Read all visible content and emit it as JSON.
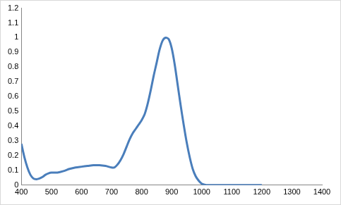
{
  "chart_data": {
    "type": "line",
    "color": "#4a7ebb",
    "grid": false,
    "x": [
      400,
      410,
      420,
      430,
      440,
      450,
      460,
      470,
      480,
      490,
      500,
      520,
      540,
      560,
      580,
      600,
      620,
      640,
      660,
      680,
      700,
      710,
      720,
      730,
      740,
      750,
      760,
      770,
      780,
      790,
      800,
      810,
      820,
      830,
      840,
      850,
      860,
      870,
      880,
      890,
      900,
      910,
      920,
      930,
      940,
      950,
      960,
      970,
      980,
      990,
      1000,
      1010,
      1020,
      1050,
      1100,
      1150,
      1200
    ],
    "values": [
      0.28,
      0.19,
      0.12,
      0.07,
      0.045,
      0.04,
      0.045,
      0.055,
      0.07,
      0.08,
      0.085,
      0.085,
      0.095,
      0.11,
      0.12,
      0.125,
      0.13,
      0.135,
      0.135,
      0.13,
      0.12,
      0.12,
      0.14,
      0.17,
      0.21,
      0.26,
      0.31,
      0.35,
      0.38,
      0.41,
      0.44,
      0.48,
      0.55,
      0.64,
      0.74,
      0.83,
      0.92,
      0.98,
      1.0,
      0.99,
      0.93,
      0.82,
      0.68,
      0.54,
      0.41,
      0.29,
      0.19,
      0.11,
      0.06,
      0.03,
      0.01,
      0.003,
      0,
      0,
      0,
      0,
      0
    ],
    "xlim": [
      400,
      1400
    ],
    "xticks": [
      400,
      500,
      600,
      700,
      800,
      900,
      1000,
      1100,
      1200,
      1300,
      1400
    ],
    "ylim": [
      0,
      1.2
    ],
    "yticks": [
      0,
      0.1,
      0.2,
      0.3,
      0.4,
      0.5,
      0.6,
      0.7,
      0.8,
      0.9,
      1,
      1.1,
      1.2
    ]
  }
}
